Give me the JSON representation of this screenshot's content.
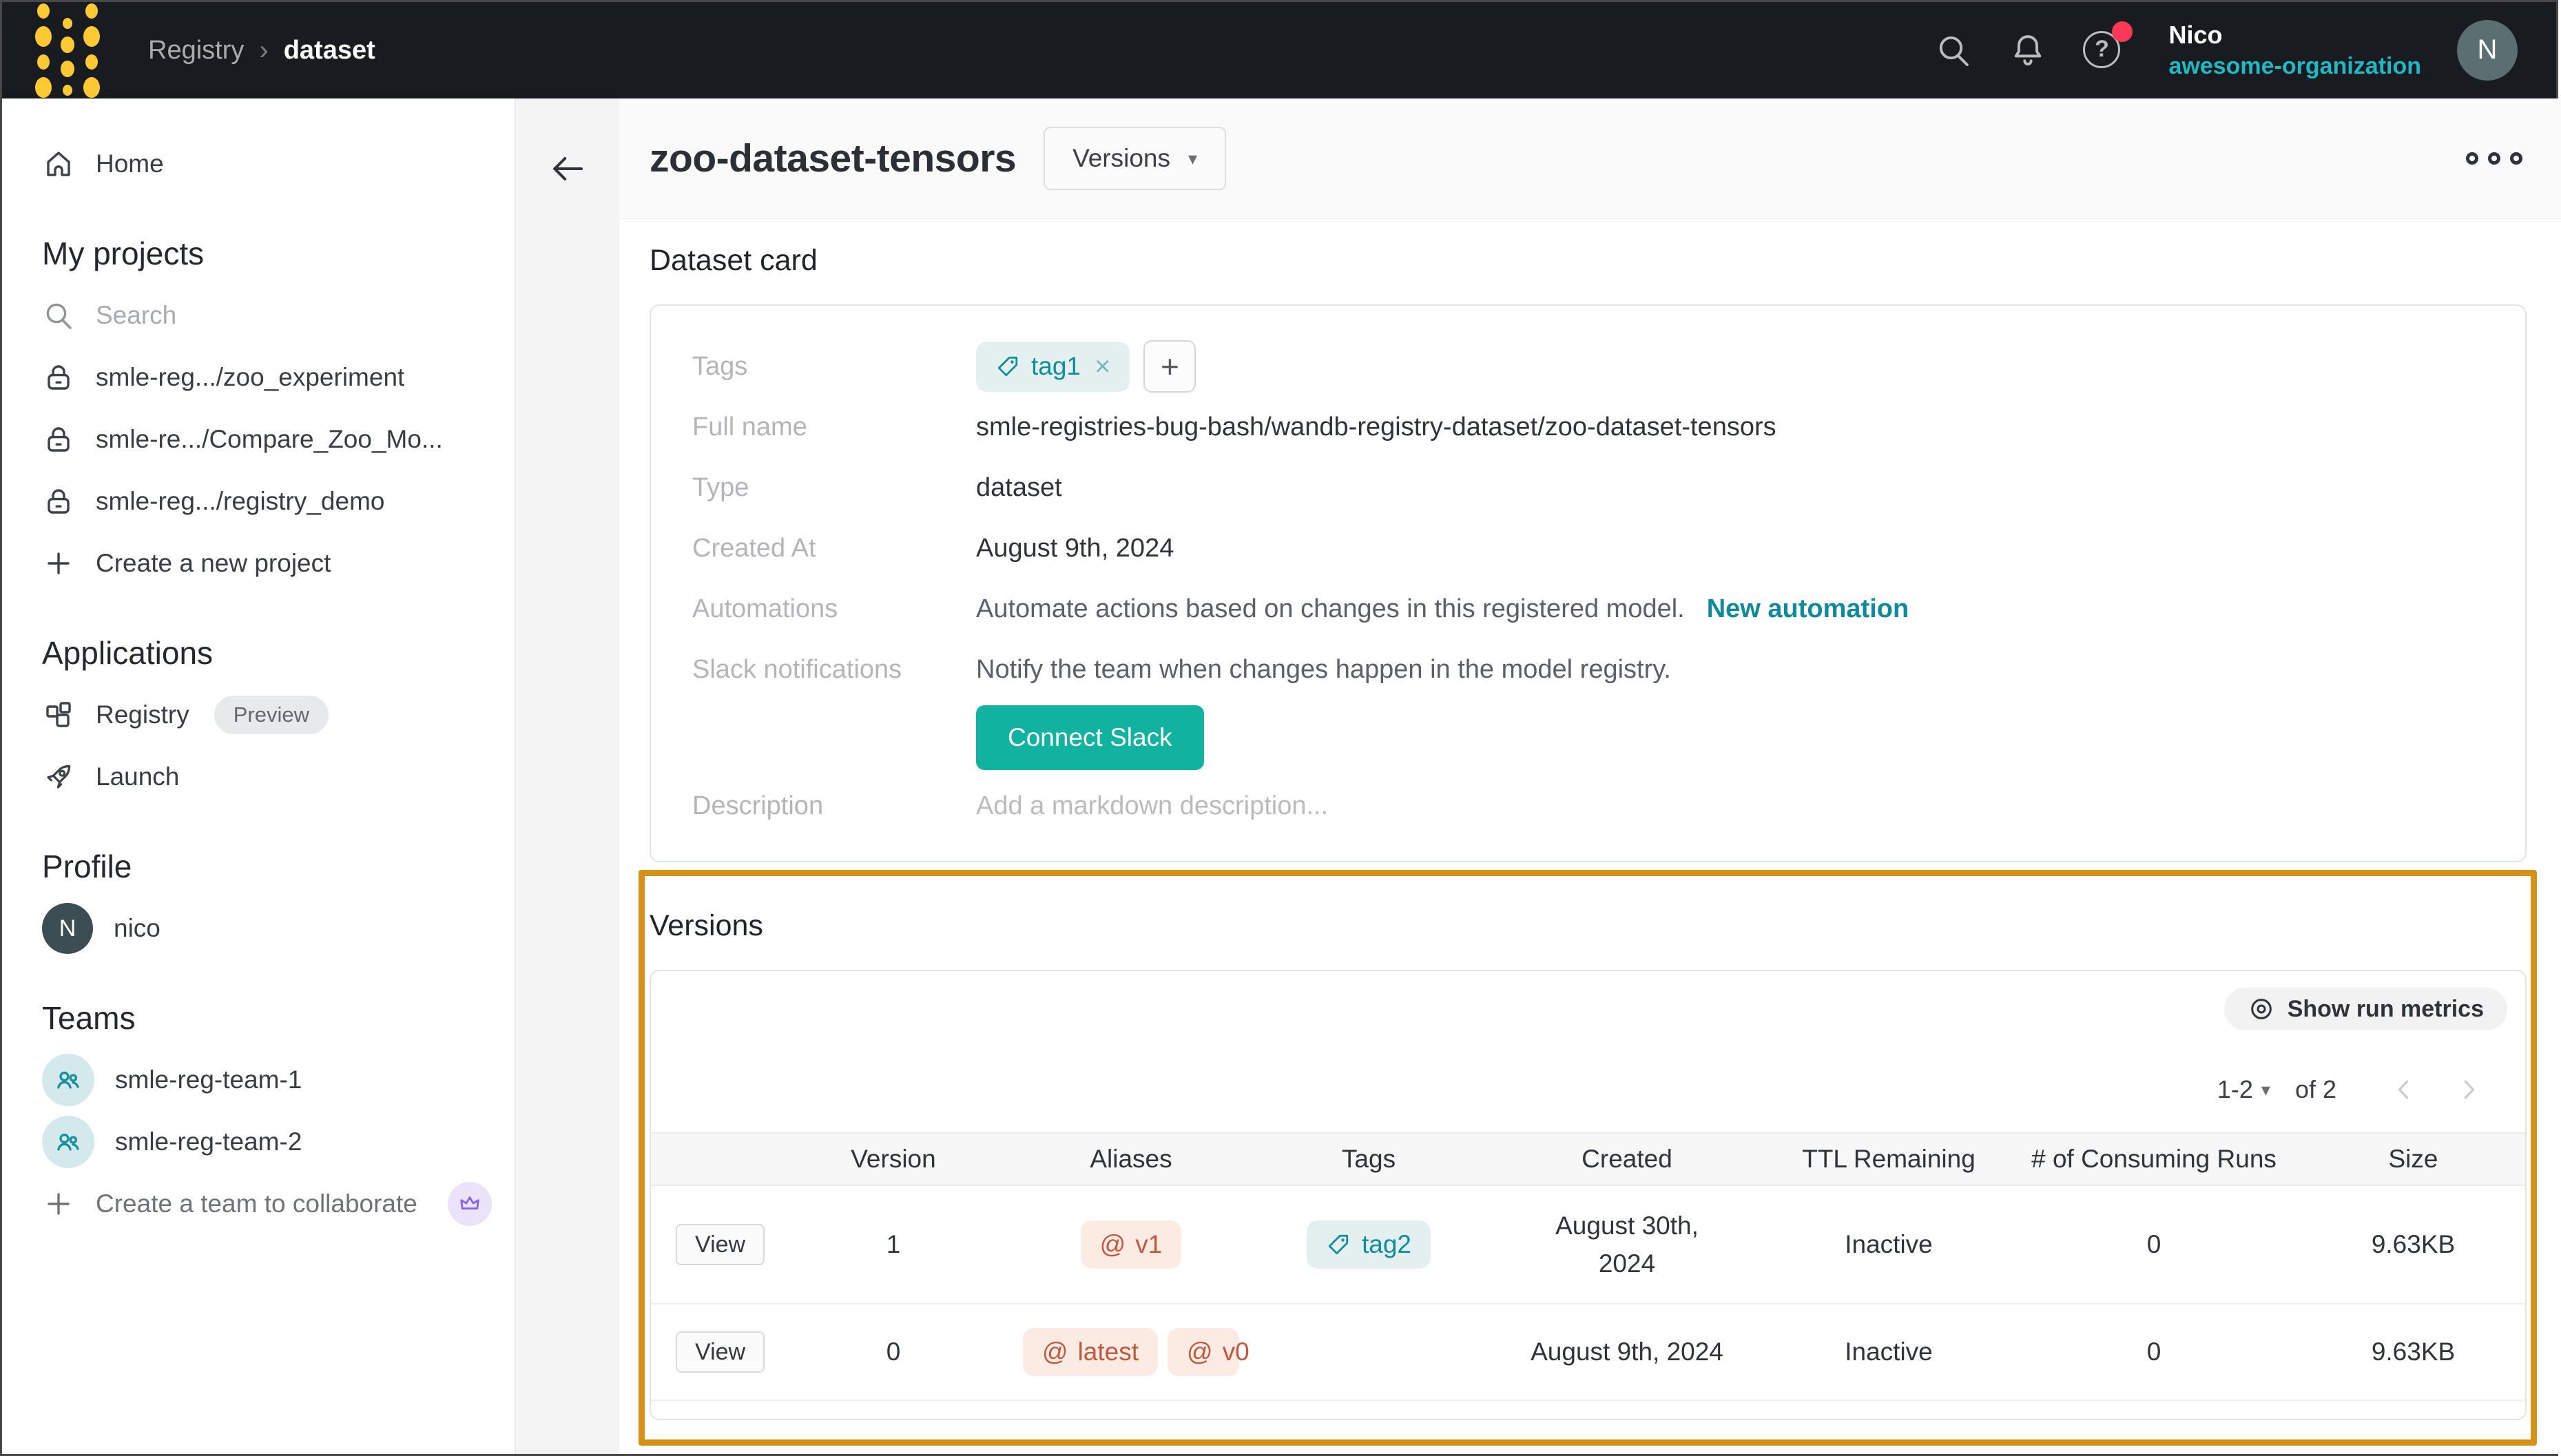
{
  "navbar": {
    "breadcrumb": {
      "root": "Registry",
      "current": "dataset"
    },
    "user": {
      "name": "Nico",
      "org": "awesome-organization",
      "initial": "N"
    }
  },
  "sidebar": {
    "home_label": "Home",
    "my_projects": {
      "title": "My projects",
      "search_placeholder": "Search",
      "items": [
        "smle-reg.../zoo_experiment",
        "smle-re.../Compare_Zoo_Mo...",
        "smle-reg.../registry_demo"
      ],
      "create_label": "Create a new project"
    },
    "applications": {
      "title": "Applications",
      "registry_label": "Registry",
      "registry_badge": "Preview",
      "launch_label": "Launch"
    },
    "profile": {
      "title": "Profile",
      "username": "nico",
      "initial": "N"
    },
    "teams": {
      "title": "Teams",
      "items": [
        "smle-reg-team-1",
        "smle-reg-team-2"
      ],
      "create_label": "Create a team to collaborate"
    }
  },
  "main": {
    "title": "zoo-dataset-tensors",
    "versions_dropdown_label": "Versions",
    "dataset_card": {
      "heading": "Dataset card",
      "tags": {
        "label": "Tags",
        "tag": "tag1"
      },
      "full_name": {
        "label": "Full name",
        "value": "smle-registries-bug-bash/wandb-registry-dataset/zoo-dataset-tensors"
      },
      "type": {
        "label": "Type",
        "value": "dataset"
      },
      "created_at": {
        "label": "Created At",
        "value": "August 9th, 2024"
      },
      "automations": {
        "label": "Automations",
        "text": "Automate actions based on changes in this registered model.",
        "link_label": "New automation"
      },
      "slack": {
        "label": "Slack notifications",
        "text": "Notify the team when changes happen in the model registry.",
        "button_label": "Connect Slack"
      },
      "description": {
        "label": "Description",
        "placeholder": "Add a markdown description..."
      }
    },
    "versions": {
      "heading": "Versions",
      "show_run_metrics_label": "Show run metrics",
      "pagination": {
        "range": "1-2",
        "of_label": "of 2"
      },
      "table": {
        "columns": [
          "Version",
          "Aliases",
          "Tags",
          "Created",
          "TTL Remaining",
          "# of Consuming Runs",
          "Size"
        ],
        "rows": [
          {
            "view_label": "View",
            "version": "1",
            "aliases": [
              "v1"
            ],
            "tags": [
              "tag2"
            ],
            "created": "August 30th, 2024",
            "ttl_remaining": "Inactive",
            "consuming_runs": "0",
            "size": "9.63KB"
          },
          {
            "view_label": "View",
            "version": "0",
            "aliases": [
              "latest",
              "v0"
            ],
            "tags": [],
            "created": "August 9th, 2024",
            "ttl_remaining": "Inactive",
            "consuming_runs": "0",
            "size": "9.63KB"
          }
        ]
      }
    }
  },
  "colors": {
    "navbar_bg": "#181b1f",
    "logo_yellow": "#ffc933",
    "org_teal": "#20b8c4",
    "notification_red": "#fb3a57",
    "accent_teal": "#12b2a0",
    "link_teal": "#0e8a9c",
    "tag_pill_bg": "#e3f0ef",
    "tag_pill_text": "#0f8d9b",
    "alias_pill_bg": "#fcebe3",
    "alias_pill_text": "#bf5a41",
    "highlight_orange": "#d69218"
  }
}
